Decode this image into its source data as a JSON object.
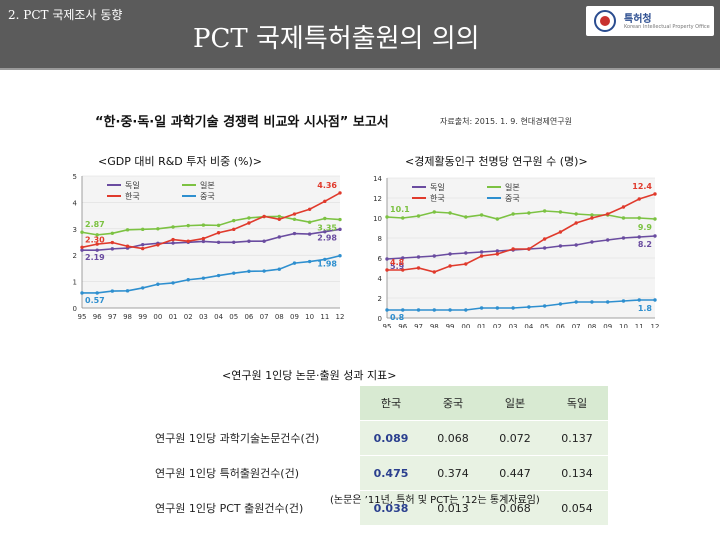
{
  "header": {
    "section_label": "2. PCT 국제조사 동향",
    "title": "PCT 국제특허출원의 의의",
    "logo_text": "특허청",
    "logo_subtext": "Korean Intellectual Property Office"
  },
  "report_title": "“한·중·독·일 과학기술 경쟁력 비교와 시사점” 보고서",
  "source_note": "자료출처: 2015. 1. 9. 현대경제연구원",
  "chart_data": [
    {
      "type": "line",
      "title": "<GDP 대비 R&D 투자 비중 (%)>",
      "categories": [
        "95",
        "96",
        "97",
        "98",
        "99",
        "00",
        "01",
        "02",
        "03",
        "04",
        "05",
        "06",
        "07",
        "08",
        "09",
        "10",
        "11",
        "12"
      ],
      "legend": [
        "독일",
        "일본",
        "한국",
        "중국"
      ],
      "ylim": [
        0,
        5
      ],
      "yticks": [
        "0",
        "1",
        "2",
        "3",
        "4",
        "5"
      ],
      "series": [
        {
          "name": "독일",
          "color": "#6a4ca0",
          "values": [
            2.19,
            2.19,
            2.24,
            2.27,
            2.4,
            2.45,
            2.46,
            2.49,
            2.52,
            2.49,
            2.49,
            2.53,
            2.53,
            2.69,
            2.82,
            2.8,
            2.89,
            2.98
          ]
        },
        {
          "name": "일본",
          "color": "#7cc242",
          "values": [
            2.87,
            2.77,
            2.83,
            2.96,
            2.98,
            3.0,
            3.07,
            3.12,
            3.14,
            3.13,
            3.31,
            3.41,
            3.46,
            3.47,
            3.36,
            3.25,
            3.39,
            3.35
          ]
        },
        {
          "name": "한국",
          "color": "#e03a2c",
          "values": [
            2.3,
            2.42,
            2.48,
            2.34,
            2.25,
            2.39,
            2.59,
            2.53,
            2.63,
            2.85,
            2.98,
            3.22,
            3.47,
            3.36,
            3.56,
            3.74,
            4.04,
            4.36
          ]
        },
        {
          "name": "중국",
          "color": "#2e8fcf",
          "values": [
            0.57,
            0.57,
            0.64,
            0.65,
            0.76,
            0.9,
            0.95,
            1.07,
            1.13,
            1.23,
            1.32,
            1.39,
            1.4,
            1.47,
            1.7,
            1.76,
            1.84,
            1.98
          ]
        }
      ],
      "labels": [
        {
          "series": "한국",
          "value": "4.36"
        },
        {
          "series": "일본",
          "value": "3.35"
        },
        {
          "series": "독일",
          "value": "2.98"
        },
        {
          "series": "중국",
          "value": "1.98"
        },
        {
          "series": "일본",
          "value": "2.87"
        },
        {
          "series": "한국",
          "value": "2.30"
        },
        {
          "series": "독일",
          "value": "2.19"
        },
        {
          "series": "중국",
          "value": "0.57"
        }
      ]
    },
    {
      "type": "line",
      "title": "<경제활동인구 천명당 연구원 수 (명)>",
      "categories": [
        "95",
        "96",
        "97",
        "98",
        "99",
        "00",
        "01",
        "02",
        "03",
        "04",
        "05",
        "06",
        "07",
        "08",
        "09",
        "10",
        "11",
        "12"
      ],
      "legend": [
        "독일",
        "일본",
        "한국",
        "중국"
      ],
      "ylim": [
        0,
        14
      ],
      "yticks": [
        "0",
        "2",
        "4",
        "6",
        "8",
        "10",
        "12",
        "14"
      ],
      "series": [
        {
          "name": "독일",
          "color": "#6a4ca0",
          "values": [
            5.9,
            6.0,
            6.1,
            6.2,
            6.4,
            6.5,
            6.6,
            6.7,
            6.8,
            6.9,
            7.0,
            7.2,
            7.3,
            7.6,
            7.8,
            8.0,
            8.1,
            8.2
          ]
        },
        {
          "name": "일본",
          "color": "#7cc242",
          "values": [
            10.1,
            10.0,
            10.2,
            10.6,
            10.5,
            10.1,
            10.3,
            9.9,
            10.4,
            10.5,
            10.7,
            10.6,
            10.4,
            10.3,
            10.3,
            10.0,
            10.0,
            9.9
          ]
        },
        {
          "name": "한국",
          "color": "#e03a2c",
          "values": [
            4.8,
            4.8,
            5.0,
            4.6,
            5.2,
            5.4,
            6.2,
            6.4,
            6.9,
            6.9,
            7.9,
            8.6,
            9.5,
            10.0,
            10.4,
            11.1,
            11.9,
            12.4
          ]
        },
        {
          "name": "중국",
          "color": "#2e8fcf",
          "values": [
            0.8,
            0.8,
            0.8,
            0.8,
            0.8,
            0.8,
            1.0,
            1.0,
            1.0,
            1.1,
            1.2,
            1.4,
            1.6,
            1.6,
            1.6,
            1.7,
            1.8,
            1.8
          ]
        }
      ],
      "labels": [
        {
          "series": "한국",
          "value": "12.4"
        },
        {
          "series": "일본",
          "value": "9.9"
        },
        {
          "series": "독일",
          "value": "8.2"
        },
        {
          "series": "중국",
          "value": "1.8"
        },
        {
          "series": "일본",
          "value": "10.1"
        },
        {
          "series": "독일",
          "value": "5.9"
        },
        {
          "series": "한국",
          "value": "4.8"
        },
        {
          "series": "중국",
          "value": "0.8"
        }
      ]
    }
  ],
  "table": {
    "caption": "<연구원 1인당 논문·출원 성과 지표>",
    "headers": [
      "",
      "한국",
      "중국",
      "일본",
      "독일"
    ],
    "rows": [
      [
        "연구원 1인당 과학기술논문건수(건)",
        "0.089",
        "0.068",
        "0.072",
        "0.137"
      ],
      [
        "연구원 1인당 특허출원건수(건)",
        "0.475",
        "0.374",
        "0.447",
        "0.134"
      ],
      [
        "연구원 1인당 PCT 출원건수(건)",
        "0.038",
        "0.013",
        "0.068",
        "0.054"
      ]
    ],
    "note": "(논문은 ’11년, 특허 및 PCT는 ’12는 통계자료임)"
  }
}
